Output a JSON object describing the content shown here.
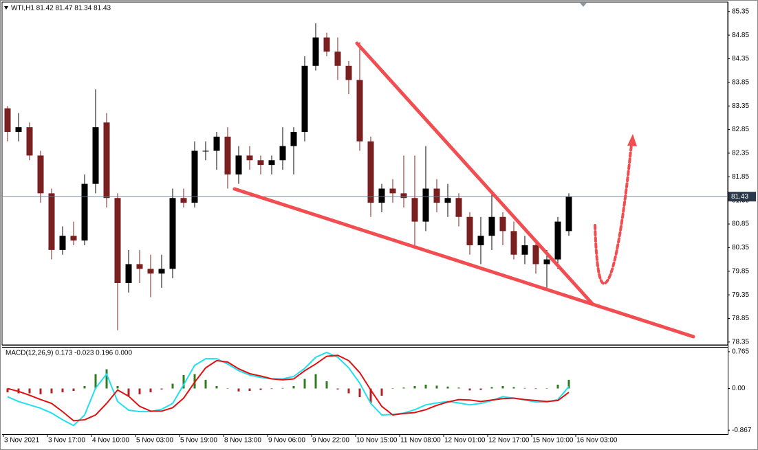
{
  "chart_data": [
    {
      "type": "candlestick",
      "header": "WTI,H1  81.42 81.47 81.34 81.43",
      "x": [
        1.5,
        5.5,
        9.5,
        13.5,
        17.5,
        21.5,
        25.5,
        29.5,
        33.5,
        37.5,
        41.5,
        45.5,
        49.5,
        53.5,
        57.5,
        61.5,
        65.5,
        69.5,
        73.5,
        77.5,
        81.5,
        85.5,
        89.5,
        93.5,
        97.5,
        101.5,
        105.5,
        109.5,
        113.5,
        117.5,
        121.5,
        125.5,
        129.5,
        133.5,
        137.5,
        141.5,
        145.5,
        149.5,
        153.5,
        157.5,
        161.5,
        165.5,
        169.5,
        173.5,
        177.5,
        181.5,
        185.5,
        189.5,
        193.5,
        197.5,
        201.5,
        205.5
      ],
      "open": [
        83.3,
        82.8,
        82.9,
        82.3,
        81.5,
        80.3,
        80.6,
        80.5,
        81.7,
        83.0,
        81.4,
        79.6,
        80.0,
        79.9,
        79.8,
        79.9,
        81.4,
        81.3,
        82.4,
        82.4,
        82.7,
        81.9,
        82.3,
        82.2,
        82.1,
        82.2,
        82.5,
        82.8,
        84.2,
        84.8,
        84.5,
        84.2,
        83.9,
        82.6,
        81.3,
        81.6,
        81.5,
        81.4,
        80.9,
        81.6,
        81.3,
        81.4,
        81.0,
        80.4,
        80.6,
        81.0,
        80.7,
        80.2,
        80.4,
        80.0,
        80.1,
        80.7
      ],
      "high": [
        83.35,
        83.2,
        83.0,
        82.4,
        81.6,
        80.8,
        80.9,
        81.9,
        83.7,
        83.2,
        81.5,
        80.3,
        80.3,
        80.2,
        80.2,
        81.6,
        81.6,
        82.6,
        82.6,
        82.8,
        82.9,
        82.5,
        82.5,
        82.3,
        82.3,
        82.9,
        82.9,
        84.4,
        85.1,
        84.9,
        84.8,
        84.3,
        84.7,
        82.7,
        81.7,
        81.8,
        82.3,
        82.3,
        82.5,
        81.8,
        81.7,
        81.5,
        81.1,
        81.0,
        81.5,
        81.1,
        80.9,
        80.6,
        80.5,
        80.3,
        81.0,
        81.5
      ],
      "low": [
        82.6,
        82.6,
        82.2,
        81.3,
        80.1,
        80.2,
        80.4,
        80.4,
        81.5,
        81.2,
        78.6,
        79.4,
        79.6,
        79.3,
        79.5,
        79.7,
        81.2,
        81.2,
        82.2,
        82.0,
        81.6,
        81.7,
        82.0,
        81.9,
        81.9,
        82.0,
        81.9,
        82.6,
        84.1,
        84.4,
        83.9,
        83.6,
        82.4,
        81.0,
        81.1,
        81.3,
        81.2,
        80.4,
        80.7,
        81.1,
        81.0,
        80.8,
        80.2,
        80.0,
        80.3,
        80.4,
        80.1,
        80.0,
        79.8,
        79.5,
        79.9,
        80.6
      ],
      "close": [
        82.8,
        82.9,
        82.3,
        81.5,
        80.3,
        80.6,
        80.5,
        81.7,
        82.9,
        81.4,
        79.6,
        80.0,
        79.9,
        79.8,
        79.9,
        81.4,
        81.3,
        82.4,
        82.4,
        82.7,
        81.9,
        82.3,
        82.2,
        82.1,
        82.2,
        82.5,
        82.8,
        84.2,
        84.8,
        84.5,
        84.2,
        83.9,
        82.6,
        81.3,
        81.6,
        81.5,
        81.4,
        80.9,
        81.6,
        81.3,
        81.4,
        81.0,
        80.4,
        80.6,
        81.0,
        80.7,
        80.2,
        80.4,
        80.0,
        80.1,
        80.9,
        81.43
      ],
      "up_color": "#000000",
      "down_color": "#7a1f1f",
      "last_price": 81.43,
      "ylim": [
        78.29,
        85.55
      ],
      "xlim": [
        -0.5,
        263.25
      ],
      "yticks": [
        85.35,
        84.85,
        84.35,
        83.85,
        83.35,
        82.85,
        82.35,
        81.85,
        81.35,
        80.85,
        80.35,
        79.85,
        79.35,
        78.85,
        78.35
      ]
    },
    {
      "type": "macd",
      "header": "MACD(12,26,9) 0.173 -0.023 0.196 0.000",
      "x": [
        1.5,
        5.5,
        9.5,
        13.5,
        17.5,
        21.5,
        25.5,
        29.5,
        33.5,
        37.5,
        41.5,
        45.5,
        49.5,
        53.5,
        57.5,
        61.5,
        65.5,
        69.5,
        73.5,
        77.5,
        81.5,
        85.5,
        89.5,
        93.5,
        97.5,
        101.5,
        105.5,
        109.5,
        113.5,
        117.5,
        121.5,
        125.5,
        129.5,
        133.5,
        137.5,
        141.5,
        145.5,
        149.5,
        153.5,
        157.5,
        161.5,
        165.5,
        169.5,
        173.5,
        177.5,
        181.5,
        185.5,
        189.5,
        193.5,
        197.5,
        201.5,
        205.5
      ],
      "histogram": [
        -0.08,
        -0.1,
        -0.1,
        -0.12,
        -0.1,
        -0.08,
        -0.05,
        0.05,
        0.3,
        0.4,
        0.05,
        -0.15,
        -0.12,
        -0.08,
        -0.02,
        0.1,
        0.28,
        0.3,
        0.18,
        0.05,
        0.0,
        -0.06,
        -0.05,
        -0.03,
        -0.01,
        0.01,
        0.05,
        0.2,
        0.3,
        0.15,
        -0.02,
        -0.1,
        -0.18,
        -0.3,
        -0.15,
        0.0,
        0.02,
        0.05,
        0.08,
        0.06,
        0.04,
        0.02,
        -0.04,
        -0.03,
        0.03,
        0.05,
        0.03,
        0.01,
        -0.01,
        0.0,
        0.08,
        0.18
      ],
      "up_color": "#2e7d1e",
      "down_color": "#b22222",
      "series": [
        {
          "color": "#1ee0f0",
          "values": [
            -0.17,
            -0.27,
            -0.34,
            -0.41,
            -0.51,
            -0.65,
            -0.77,
            -0.55,
            0.01,
            0.3,
            -0.27,
            -0.45,
            -0.48,
            -0.48,
            -0.43,
            -0.31,
            0.08,
            0.48,
            0.62,
            0.62,
            0.51,
            0.37,
            0.28,
            0.23,
            0.2,
            0.2,
            0.25,
            0.42,
            0.65,
            0.75,
            0.65,
            0.43,
            0.11,
            -0.31,
            -0.55,
            -0.54,
            -0.51,
            -0.44,
            -0.34,
            -0.3,
            -0.27,
            -0.3,
            -0.34,
            -0.31,
            -0.25,
            -0.17,
            -0.2,
            -0.24,
            -0.28,
            -0.28,
            -0.23,
            0.04
          ]
        },
        {
          "color": "#e01010",
          "values": [
            0.0,
            -0.06,
            -0.14,
            -0.23,
            -0.31,
            -0.48,
            -0.67,
            -0.65,
            -0.55,
            -0.31,
            -0.03,
            -0.16,
            -0.37,
            -0.47,
            -0.47,
            -0.4,
            -0.2,
            0.13,
            0.43,
            0.58,
            0.55,
            0.41,
            0.31,
            0.26,
            0.2,
            0.18,
            0.2,
            0.37,
            0.51,
            0.67,
            0.69,
            0.58,
            0.33,
            -0.03,
            -0.37,
            -0.55,
            -0.52,
            -0.5,
            -0.44,
            -0.35,
            -0.28,
            -0.23,
            -0.24,
            -0.27,
            -0.24,
            -0.21,
            -0.2,
            -0.23,
            -0.25,
            -0.27,
            -0.25,
            -0.08
          ]
        }
      ],
      "ylim": [
        -0.95,
        0.85
      ],
      "xlim": [
        -0.5,
        263.25
      ],
      "yticks": [
        0.765,
        {
          "value": 0,
          "label": "0.00"
        },
        -0.867
      ],
      "xticks": [
        {
          "value": 0,
          "label": "3 Nov 2021"
        },
        {
          "value": 16,
          "label": "3 Nov 17:00"
        },
        {
          "value": 32,
          "label": "4 Nov 10:00"
        },
        {
          "value": 48,
          "label": "5 Nov 03:00"
        },
        {
          "value": 64,
          "label": "5 Nov 19:00"
        },
        {
          "value": 80,
          "label": "8 Nov 13:00"
        },
        {
          "value": 96,
          "label": "9 Nov 06:00"
        },
        {
          "value": 112,
          "label": "9 Nov 22:00"
        },
        {
          "value": 128,
          "label": "10 Nov 15:00"
        },
        {
          "value": 144,
          "label": "11 Nov 08:00"
        },
        {
          "value": 160,
          "label": "12 Nov 01:00"
        },
        {
          "value": 176,
          "label": "12 Nov 17:00"
        },
        {
          "value": 192,
          "label": "15 Nov 10:00"
        },
        {
          "value": 208,
          "label": "16 Nov 03:00"
        }
      ]
    }
  ]
}
